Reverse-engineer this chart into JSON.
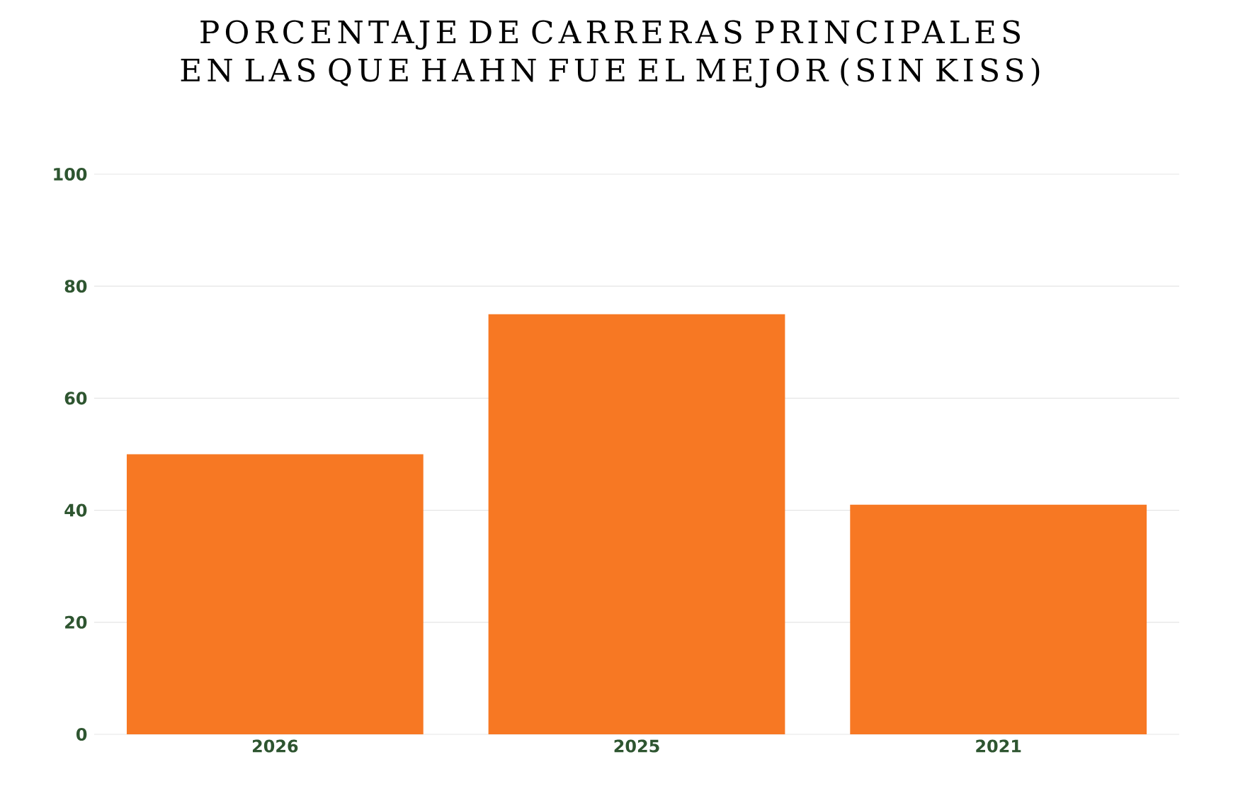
{
  "chart_data": {
    "type": "bar",
    "title": "PORCENTAJE DE CARRERAS PRINCIPALES EN LAS QUE HAHN FUE EL MEJOR (SIN KISS)",
    "categories": [
      "2026",
      "2025",
      "2021"
    ],
    "values": [
      50,
      75,
      41
    ],
    "color": "#f77823",
    "ylim": [
      0,
      100
    ],
    "yticks": [
      0,
      20,
      40,
      60,
      80,
      100
    ],
    "grid": "y"
  }
}
